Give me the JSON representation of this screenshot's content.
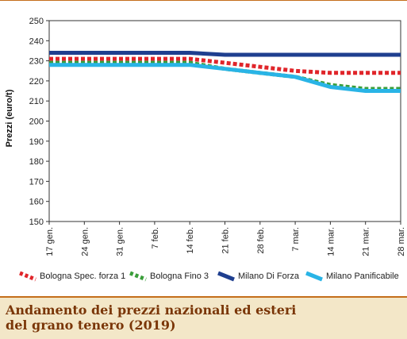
{
  "caption": {
    "line1": "Andamento dei prezzi nazionali ed esteri",
    "line2": "del grano tenero (2019)"
  },
  "colors": {
    "frame": "#c46e1a",
    "caption_bg": "#f3e7c8",
    "caption_text": "#7a3608"
  },
  "chart_data": {
    "type": "line",
    "ylabel": "Prezzi (euro/t)",
    "xlabel": "",
    "ylim": [
      150,
      250
    ],
    "yticks": [
      150,
      160,
      170,
      180,
      190,
      200,
      210,
      220,
      230,
      240,
      250
    ],
    "grid": false,
    "legend_position": "bottom",
    "categories": [
      "17 gen.",
      "24 gen.",
      "31 gen.",
      "7 feb.",
      "14 feb.",
      "21 feb.",
      "28 feb.",
      "7 mar.",
      "14 mar.",
      "21 mar.",
      "28 mar."
    ],
    "series": [
      {
        "name": "Bologna Spec. forza 1",
        "color": "#e0252a",
        "dash": "dotted",
        "values": [
          231,
          231,
          231,
          231,
          231,
          229,
          227,
          225,
          224,
          224,
          224
        ]
      },
      {
        "name": "Bologna Fino 3",
        "color": "#3a9e3a",
        "dash": "dotted",
        "values": [
          229,
          229,
          229,
          229,
          229,
          226,
          224,
          222,
          218,
          216,
          216
        ]
      },
      {
        "name": "Milano Di Forza",
        "color": "#1f3f8f",
        "dash": "solid",
        "values": [
          234,
          234,
          234,
          234,
          234,
          233,
          233,
          233,
          233,
          233,
          233
        ]
      },
      {
        "name": "Milano Panificabile",
        "color": "#29b4e6",
        "dash": "solid",
        "values": [
          228,
          228,
          228,
          228,
          228,
          226,
          224,
          222,
          217,
          215,
          215
        ]
      }
    ]
  }
}
